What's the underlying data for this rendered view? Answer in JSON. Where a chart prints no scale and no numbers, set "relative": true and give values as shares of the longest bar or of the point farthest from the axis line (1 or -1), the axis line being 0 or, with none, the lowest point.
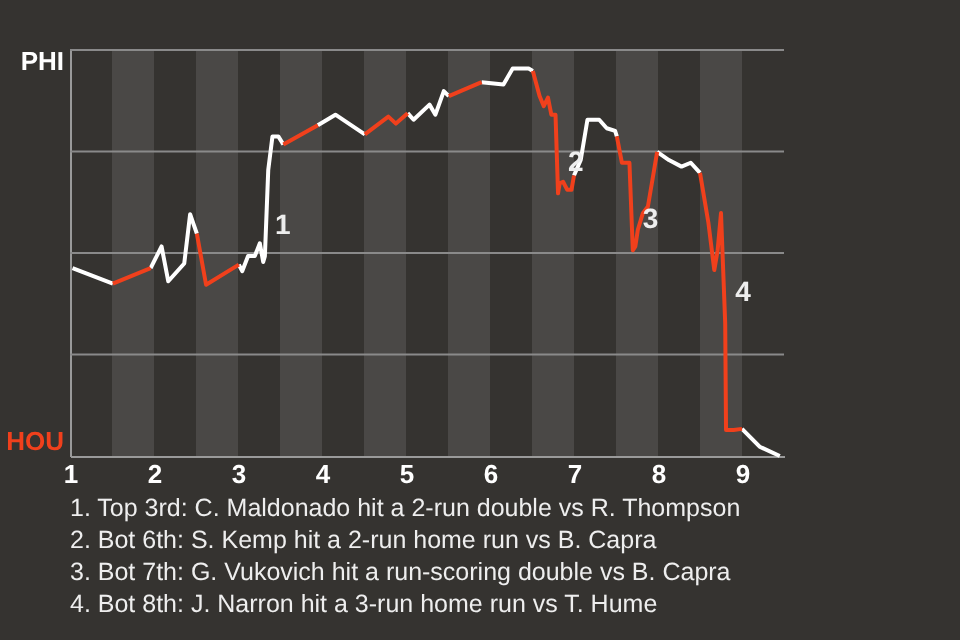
{
  "chart_data": {
    "type": "line",
    "relative": true,
    "xlim": [
      1,
      9.5
    ],
    "xticks": [
      1,
      2,
      3,
      4,
      5,
      6,
      7,
      8,
      9
    ],
    "grid": false,
    "line_style": "solid",
    "series": [
      {
        "color": "#ffffff",
        "x": [
          1.03,
          1.51,
          1.75,
          1.96,
          2.09,
          2.17,
          2.36,
          2.43,
          2.51,
          2.75,
          3.01,
          3.05,
          3.12,
          3.2,
          3.26,
          3.3,
          3.32,
          3.36,
          3.41,
          3.48,
          3.54,
          3.75,
          3.95,
          4.16,
          4.51,
          4.75,
          5.02,
          5.09,
          5.28,
          5.35,
          5.45,
          5.51,
          5.75,
          5.9,
          6.16,
          6.27,
          6.46,
          6.51,
          6.75,
          7.0,
          7.08,
          7.16,
          7.3,
          7.39,
          7.49,
          7.51,
          7.75,
          7.99,
          8.13,
          8.28,
          8.39,
          8.5,
          8.75,
          9.0,
          9.21,
          9.45
        ],
        "values": [
          0.485,
          0.445,
          null,
          0.485,
          0.541,
          0.451,
          0.497,
          0.624,
          0.574,
          null,
          0.494,
          0.477,
          0.516,
          0.516,
          0.549,
          0.501,
          0.516,
          0.738,
          0.825,
          0.825,
          0.804,
          null,
          0.854,
          0.881,
          0.83,
          null,
          0.885,
          0.868,
          0.907,
          0.881,
          0.942,
          0.929,
          null,
          0.965,
          0.959,
          1,
          1,
          0.994,
          null,
          0.724,
          0.764,
          0.868,
          0.868,
          0.846,
          0.839,
          0.825,
          null,
          0.785,
          0.764,
          0.747,
          0.757,
          0.731,
          null,
          0.07,
          0.024,
          0
        ]
      },
      {
        "color": "#f0401c",
        "x": [
          1.51,
          1.96,
          2.2,
          2.51,
          2.62,
          3.01,
          3.2,
          3.54,
          3.95,
          4.3,
          4.51,
          4.79,
          4.88,
          5.02,
          5.2,
          5.51,
          5.9,
          6.2,
          6.51,
          6.59,
          6.64,
          6.69,
          6.73,
          6.78,
          6.81,
          6.83,
          6.87,
          6.92,
          6.97,
          7.0,
          7.2,
          7.51,
          7.57,
          7.66,
          7.7,
          7.73,
          7.76,
          7.82,
          7.88,
          7.99,
          8.2,
          8.5,
          8.6,
          8.67,
          8.71,
          8.75,
          8.8,
          8.81,
          8.9,
          9.0
        ],
        "values": [
          0.445,
          0.485,
          null,
          0.574,
          0.442,
          0.494,
          null,
          0.804,
          0.854,
          null,
          0.83,
          0.876,
          0.858,
          0.885,
          null,
          0.929,
          0.965,
          null,
          0.994,
          0.929,
          0.903,
          0.925,
          0.881,
          0.881,
          0.678,
          0.704,
          0.708,
          0.687,
          0.687,
          0.724,
          null,
          0.825,
          0.757,
          0.757,
          0.531,
          0.541,
          0.584,
          0.627,
          0.644,
          0.785,
          null,
          0.731,
          0.602,
          0.48,
          0.531,
          0.627,
          0.343,
          0.067,
          0.067,
          0.07
        ]
      }
    ],
    "ref_lines": [
      {
        "axis": "y",
        "value": 0.262,
        "color": "#8a8a8a"
      },
      {
        "axis": "y",
        "value": 0.524,
        "color": "#8a8a8a"
      },
      {
        "axis": "y",
        "value": 0.786,
        "color": "#8a8a8a"
      },
      {
        "axis": "y",
        "value": 1.048,
        "color": "#8a8a8a"
      }
    ],
    "bands": [
      {
        "axis": "x",
        "from": 1.5,
        "to": 2,
        "color": "#4a4846"
      },
      {
        "axis": "x",
        "from": 2.5,
        "to": 3,
        "color": "#4a4846"
      },
      {
        "axis": "x",
        "from": 3.5,
        "to": 4,
        "color": "#4a4846"
      },
      {
        "axis": "x",
        "from": 4.5,
        "to": 5,
        "color": "#4a4846"
      },
      {
        "axis": "x",
        "from": 5.5,
        "to": 6,
        "color": "#4a4846"
      },
      {
        "axis": "x",
        "from": 6.5,
        "to": 7,
        "color": "#4a4846"
      },
      {
        "axis": "x",
        "from": 7.5,
        "to": 8,
        "color": "#4a4846"
      },
      {
        "axis": "x",
        "from": 8.5,
        "to": 9,
        "color": "#4a4846"
      }
    ],
    "annotations": [
      {
        "text": "1",
        "x": 3.32,
        "y": 0.516
      },
      {
        "text": "2",
        "x": 6.81,
        "y": 0.678
      },
      {
        "text": "3",
        "x": 7.7,
        "y": 0.531
      },
      {
        "text": "4",
        "x": 8.8,
        "y": 0.343
      },
      "PHI",
      "HOU",
      "1. Top 3rd: C. Maldonado hit a 2-run double vs R. Thompson",
      "2. Bot 6th: S. Kemp hit a 2-run home run vs B. Capra",
      "3. Bot 7th: G. Vukovich hit a run-scoring double vs B. Capra",
      "4. Bot 8th: J. Narron hit a 3-run home run vs T. Hume"
    ]
  }
}
